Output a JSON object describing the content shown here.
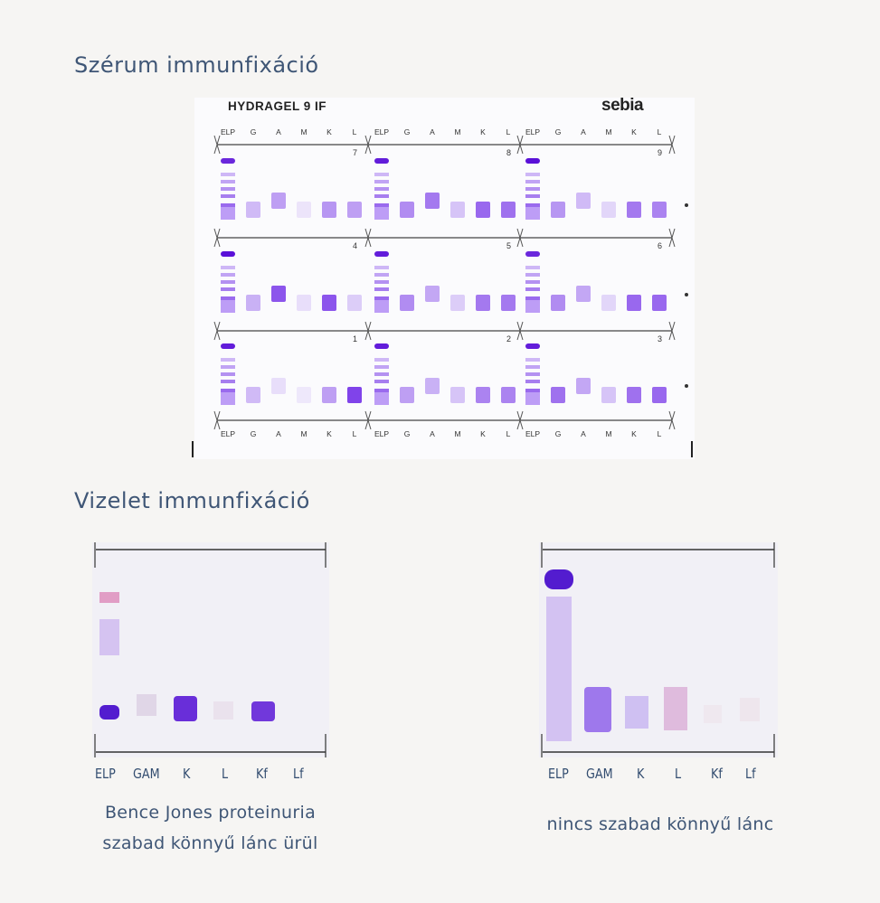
{
  "serum": {
    "heading": "Szérum  immunfixáció",
    "gel_title": "HYDRAGEL 9 IF",
    "brand": "sebia",
    "lane_labels": [
      "ELP",
      "G",
      "A",
      "M",
      "K",
      "L"
    ],
    "sample_numbers": [
      "7",
      "8",
      "9",
      "4",
      "5",
      "6",
      "1",
      "2",
      "3"
    ]
  },
  "urine": {
    "heading": "Vizelet  immunfixáció",
    "lane_labels": [
      "ELP",
      "GAM",
      "K",
      "L",
      "Kf",
      "Lf"
    ],
    "left_caption_1": "Bence  Jones  proteinuria",
    "left_caption_2": "szabad  könnyű  lánc  ürül",
    "right_caption": "nincs  szabad  könnyű  lánc"
  },
  "colors": {
    "heading": "#3f5676",
    "stain": "#6a1fe0",
    "gel": "#fbfbfd"
  }
}
